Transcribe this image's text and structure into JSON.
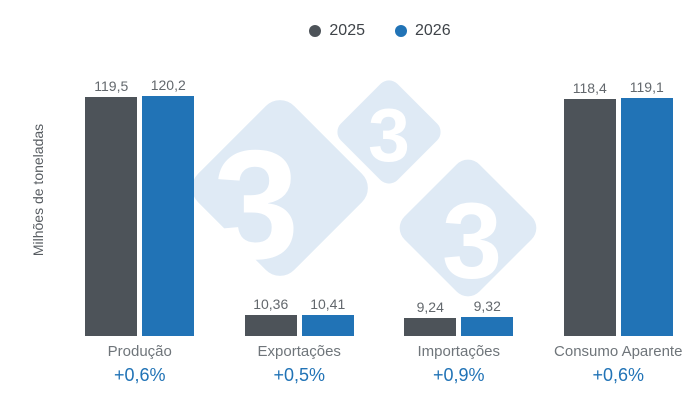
{
  "colors": {
    "series_2025": "#4d5359",
    "series_2026": "#2173b6",
    "pct": "#2173b6",
    "watermark_bg": "#dfeaf5"
  },
  "legend": {
    "items": [
      {
        "label": "2025",
        "color": "#4d5359"
      },
      {
        "label": "2026",
        "color": "#2173b6"
      }
    ]
  },
  "y_axis_label": "Milhões de toneladas",
  "watermark": {
    "glyph": "3"
  },
  "chart_data": {
    "type": "bar",
    "title": "",
    "xlabel": "",
    "ylabel": "Milhões de toneladas",
    "categories": [
      "Produção",
      "Exportações",
      "Importações",
      "Consumo Aparente"
    ],
    "series": [
      {
        "name": "2025",
        "color": "#4d5359",
        "values": [
          119.5,
          10.36,
          9.24,
          118.4
        ],
        "labels": [
          "119,5",
          "10,36",
          "9,24",
          "118,4"
        ]
      },
      {
        "name": "2026",
        "color": "#2173b6",
        "values": [
          120.2,
          10.41,
          9.32,
          119.1
        ],
        "labels": [
          "120,2",
          "10,41",
          "9,32",
          "119,1"
        ]
      }
    ],
    "change_labels": [
      "+0,6%",
      "+0,5%",
      "+0,9%",
      "+0,6%"
    ],
    "ylim": [
      0,
      125
    ],
    "grid": false,
    "legend_position": "top",
    "value_labels": "above-bars"
  }
}
